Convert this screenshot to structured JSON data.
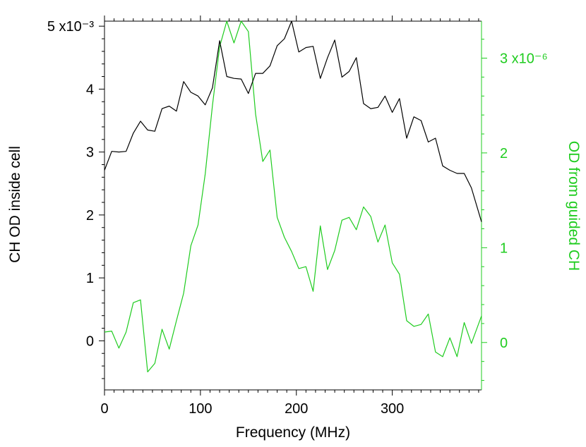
{
  "chart_data": {
    "type": "line",
    "xlabel": "Frequency (MHz)",
    "ylabel_left": "CH OD inside cell",
    "ylabel_right": "OD from guided CH",
    "xlim": [
      0,
      393
    ],
    "ylim_left": [
      -0.78,
      5.08
    ],
    "ylim_right": [
      -0.5,
      3.39
    ],
    "x_ticks": [
      0,
      100,
      200,
      300
    ],
    "x_tick_labels": [
      "0",
      "100",
      "200",
      "300"
    ],
    "y_left_ticks": [
      0,
      1,
      2,
      3,
      4,
      5
    ],
    "y_left_tick_labels": [
      "0",
      "1",
      "2",
      "3",
      "4",
      "5 x10⁻³"
    ],
    "y_right_ticks": [
      0,
      1,
      2,
      3
    ],
    "y_right_tick_labels": [
      "0",
      "1",
      "2",
      "3 x10⁻⁶"
    ],
    "grid": false,
    "legend": false,
    "series": [
      {
        "axis": "left",
        "color": "#000000",
        "x": [
          0,
          7.5,
          15,
          22.5,
          30,
          37.5,
          45,
          52.5,
          60,
          67.5,
          75,
          82.5,
          90,
          97.5,
          105,
          112.5,
          120,
          127.5,
          135,
          142.5,
          150,
          157.5,
          165,
          172.5,
          180,
          187.5,
          195,
          202.5,
          210,
          217.5,
          225,
          232.5,
          240,
          247.5,
          255,
          262.5,
          270,
          277.5,
          285,
          292.5,
          300,
          307.5,
          315,
          322.5,
          330,
          337.5,
          345,
          352.5,
          360,
          367.5,
          375,
          382.5,
          393
        ],
        "values": [
          2.71,
          3.01,
          3.0,
          3.01,
          3.3,
          3.49,
          3.35,
          3.33,
          3.69,
          3.73,
          3.65,
          4.12,
          3.95,
          3.89,
          3.75,
          4.02,
          4.77,
          4.2,
          4.17,
          4.16,
          3.93,
          4.25,
          4.25,
          4.37,
          4.69,
          4.8,
          5.08,
          4.59,
          4.66,
          4.68,
          4.17,
          4.5,
          4.78,
          4.19,
          4.28,
          4.5,
          3.77,
          3.69,
          3.71,
          3.89,
          3.63,
          3.85,
          3.22,
          3.56,
          3.5,
          3.16,
          3.22,
          2.78,
          2.71,
          2.66,
          2.66,
          2.43,
          1.89
        ]
      },
      {
        "axis": "right",
        "color": "#1fcc1f",
        "x": [
          0,
          7.5,
          15,
          22.5,
          30,
          37.5,
          45,
          52.5,
          60,
          67.5,
          75,
          82.5,
          90,
          97.5,
          105,
          112.5,
          120,
          127.5,
          135,
          142.5,
          150,
          157.5,
          165,
          172.5,
          180,
          187.5,
          195,
          202.5,
          210,
          217.5,
          225,
          232.5,
          240,
          247.5,
          255,
          262.5,
          270,
          277.5,
          285,
          292.5,
          300,
          307.5,
          315,
          322.5,
          330,
          337.5,
          345,
          352.5,
          360,
          367.5,
          375,
          382.5,
          393
        ],
        "values": [
          0.11,
          0.12,
          -0.06,
          0.11,
          0.42,
          0.45,
          -0.31,
          -0.22,
          0.14,
          -0.07,
          0.23,
          0.52,
          1.02,
          1.24,
          1.78,
          2.5,
          3.12,
          3.39,
          3.16,
          3.39,
          3.28,
          2.41,
          1.91,
          2.03,
          1.32,
          1.11,
          0.96,
          0.78,
          0.8,
          0.54,
          1.23,
          0.77,
          0.97,
          1.29,
          1.32,
          1.19,
          1.43,
          1.33,
          1.06,
          1.24,
          0.84,
          0.72,
          0.23,
          0.17,
          0.19,
          0.3,
          -0.1,
          -0.15,
          0.05,
          -0.15,
          0.21,
          -0.01,
          0.28
        ]
      }
    ]
  }
}
